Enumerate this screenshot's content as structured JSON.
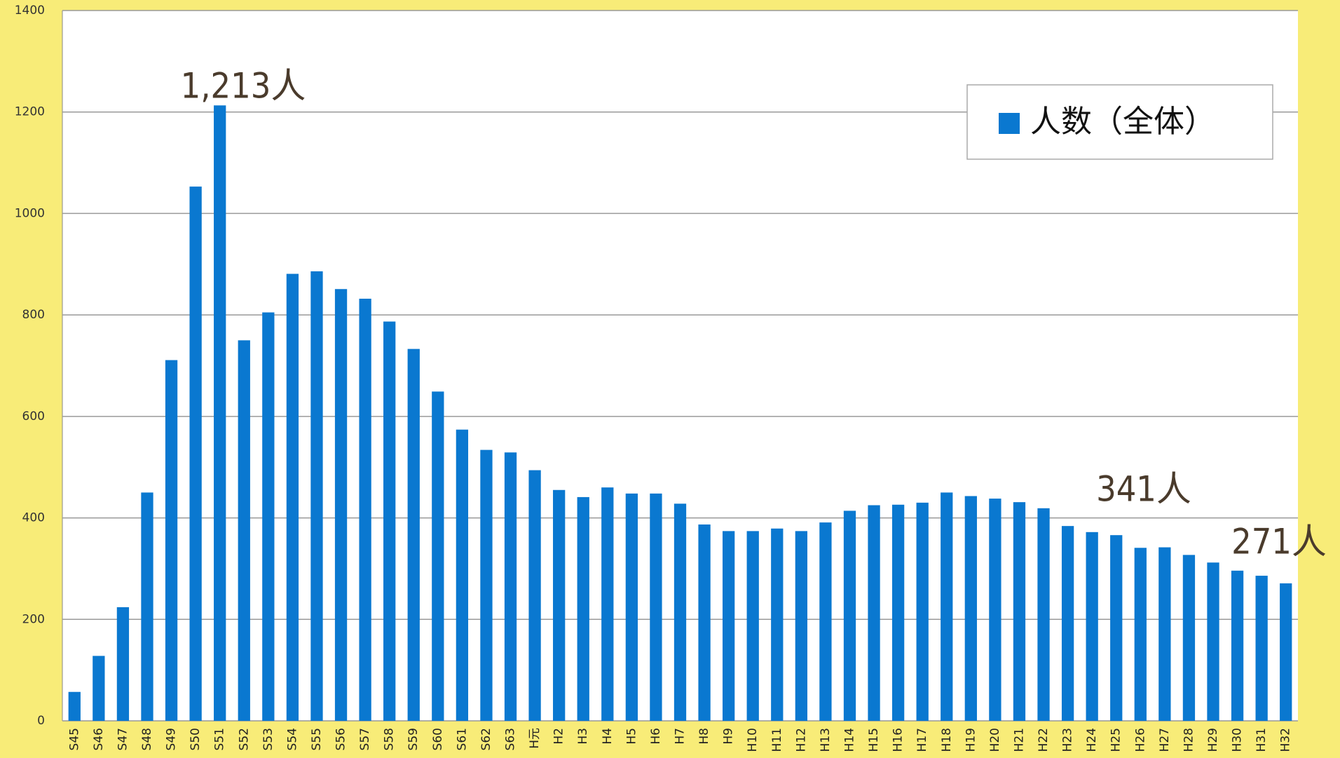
{
  "chart_data": {
    "type": "bar",
    "categories": [
      "S45",
      "S46",
      "S47",
      "S48",
      "S49",
      "S50",
      "S51",
      "S52",
      "S53",
      "S54",
      "S55",
      "S56",
      "S57",
      "S58",
      "S59",
      "S60",
      "S61",
      "S62",
      "S63",
      "H元",
      "H2",
      "H3",
      "H4",
      "H5",
      "H6",
      "H7",
      "H8",
      "H9",
      "H10",
      "H11",
      "H12",
      "H13",
      "H14",
      "H15",
      "H16",
      "H17",
      "H18",
      "H19",
      "H20",
      "H21",
      "H22",
      "H23",
      "H24",
      "H25",
      "H26",
      "H27",
      "H28",
      "H29",
      "H30",
      "H31",
      "H32"
    ],
    "series": [
      {
        "name": "人数（全体）",
        "color": "#0a78d0",
        "values": [
          57,
          128,
          224,
          450,
          711,
          1053,
          1213,
          750,
          805,
          881,
          886,
          851,
          832,
          787,
          733,
          649,
          574,
          534,
          529,
          494,
          455,
          441,
          460,
          448,
          448,
          428,
          387,
          374,
          374,
          379,
          374,
          391,
          414,
          425,
          426,
          430,
          450,
          443,
          438,
          431,
          419,
          384,
          372,
          366,
          341,
          342,
          327,
          312,
          296,
          286,
          271
        ]
      }
    ],
    "ylim": [
      0,
      1400
    ],
    "yticks": [
      0,
      200,
      400,
      600,
      800,
      1000,
      1200,
      1400
    ],
    "grid": true,
    "annotations": [
      "1,213人",
      "341人",
      "271人"
    ],
    "legend": "top-right"
  }
}
